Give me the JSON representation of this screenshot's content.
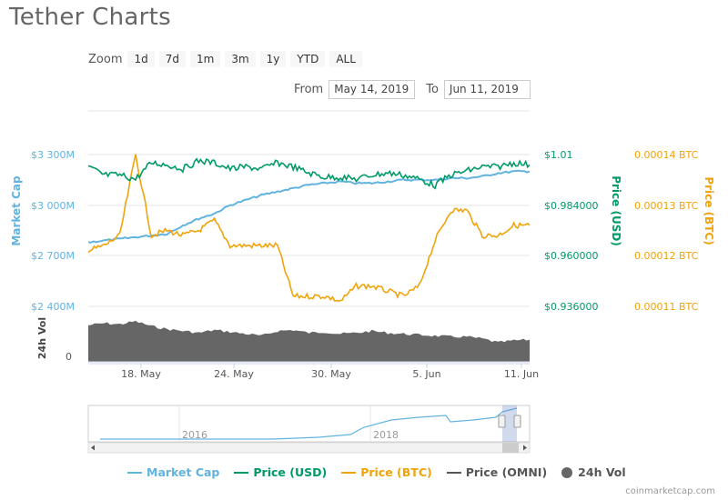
{
  "page": {
    "title": "Tether Charts",
    "credit": "coinmarketcap.com"
  },
  "zoom": {
    "label": "Zoom",
    "buttons": [
      "1d",
      "7d",
      "1m",
      "3m",
      "1y",
      "YTD",
      "ALL"
    ]
  },
  "range": {
    "from_label": "From",
    "from_value": "May 14, 2019",
    "to_label": "To",
    "to_value": "Jun 11, 2019"
  },
  "colors": {
    "market_cap": "#61b3e0",
    "price_usd": "#009a66",
    "price_btc": "#f0a30a",
    "price_omni": "#555555",
    "volume": "#666666"
  },
  "chart_data": {
    "type": "line",
    "title": "Tether Charts",
    "x_range": [
      "2019-05-14",
      "2019-06-11"
    ],
    "x_ticks": [
      "18. May",
      "24. May",
      "30. May",
      "5. Jun",
      "11. Jun"
    ],
    "y_axes": {
      "market_cap": {
        "label": "Market Cap",
        "ticks": [
          "$3 300M",
          "$3 000M",
          "$2 700M",
          "$2 400M"
        ],
        "range": [
          2400,
          3300
        ]
      },
      "price_usd": {
        "label": "Price (USD)",
        "ticks": [
          "$1.01",
          "$0.984000",
          "$0.960000",
          "$0.936000"
        ],
        "range": [
          0.936,
          1.01
        ]
      },
      "price_btc": {
        "label": "Price (BTC)",
        "ticks": [
          "0.00014 BTC",
          "0.00013 BTC",
          "0.00012 BTC",
          "0.00011 BTC"
        ],
        "range": [
          0.00011,
          0.00014
        ]
      },
      "volume": {
        "label": "24h Vol",
        "ticks": [
          "0"
        ]
      }
    },
    "series": [
      {
        "name": "Market Cap",
        "values": [
          2780,
          2790,
          2800,
          2810,
          2820,
          2830,
          2880,
          2920,
          2950,
          3000,
          3030,
          3060,
          3080,
          3100,
          3120,
          3130,
          3140,
          3130,
          3130,
          3140,
          3150,
          3150,
          3150,
          3160,
          3160,
          3170,
          3190,
          3200,
          3200
        ]
      },
      {
        "name": "Price (USD)",
        "values": [
          1.004,
          1.0,
          1.0,
          0.998,
          1.006,
          1.005,
          1.003,
          1.007,
          1.006,
          1.003,
          1.004,
          1.003,
          1.006,
          1.004,
          1.001,
          0.999,
          0.999,
          0.998,
          1.0,
          1.001,
          1.0,
          0.998,
          0.995,
          1.0,
          1.002,
          1.004,
          1.004,
          1.006,
          1.005
        ]
      },
      {
        "name": "Price (BTC)",
        "values": [
          0.000121,
          0.000122,
          0.000124,
          0.00014,
          0.000124,
          0.000125,
          0.000124,
          0.000125,
          0.000127,
          0.000122,
          0.000122,
          0.000122,
          0.000122,
          0.000112,
          0.000112,
          0.000112,
          0.000111,
          0.000114,
          0.000114,
          0.000113,
          0.000112,
          0.000114,
          0.000123,
          0.000129,
          0.000129,
          0.000124,
          0.000124,
          0.000126,
          0.000126
        ]
      },
      {
        "name": "Price (OMNI)",
        "values": []
      },
      {
        "name": "24h Vol",
        "values": [
          38,
          40,
          39,
          42,
          37,
          34,
          32,
          30,
          33,
          31,
          29,
          27,
          32,
          33,
          30,
          31,
          29,
          30,
          32,
          30,
          29,
          28,
          27,
          26,
          26,
          24,
          20,
          22,
          23
        ]
      }
    ],
    "navigator": {
      "labels": [
        "2016",
        "2018"
      ]
    },
    "legend_position": "bottom"
  }
}
